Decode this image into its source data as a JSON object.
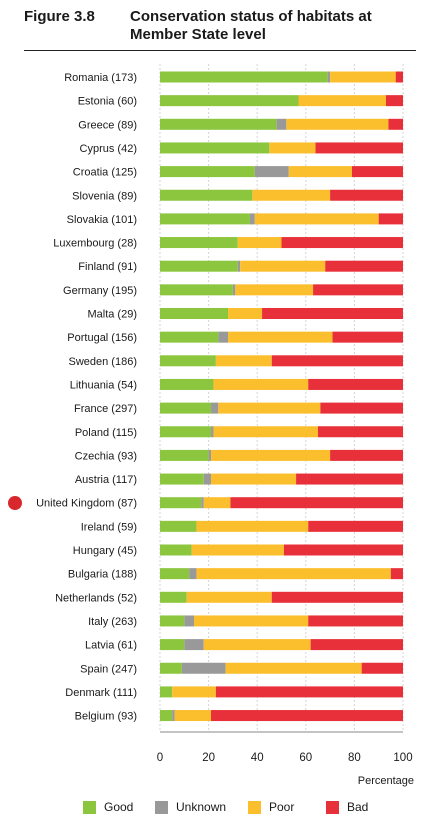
{
  "figure": {
    "number": "Figure 3.8",
    "title": "Conservation status of habitats at Member State level"
  },
  "colors": {
    "good": "#8cc63f",
    "unknown": "#999999",
    "poor": "#fbbf2e",
    "bad": "#e8303a"
  },
  "legend": [
    {
      "key": "good",
      "label": "Good"
    },
    {
      "key": "unknown",
      "label": "Unknown"
    },
    {
      "key": "poor",
      "label": "Poor"
    },
    {
      "key": "bad",
      "label": "Bad"
    }
  ],
  "chart_data": {
    "type": "bar",
    "orientation": "horizontal",
    "stacked": true,
    "xlabel": "Percentage",
    "ylabel": "",
    "xlim": [
      0,
      100
    ],
    "xticks": [
      0,
      20,
      40,
      60,
      80,
      100
    ],
    "grid": true,
    "highlighted_category": "United Kingdom (87)",
    "categories": [
      "Romania (173)",
      "Estonia (60)",
      "Greece (89)",
      "Cyprus (42)",
      "Croatia (125)",
      "Slovenia (89)",
      "Slovakia (101)",
      "Luxembourg (28)",
      "Finland (91)",
      "Germany (195)",
      "Malta (29)",
      "Portugal (156)",
      "Sweden (186)",
      "Lithuania (54)",
      "France (297)",
      "Poland  (115)",
      "Czechia (93)",
      "Austria (117)",
      "United Kingdom (87)",
      "Ireland (59)",
      "Hungary (45)",
      "Bulgaria (188)",
      "Netherlands (52)",
      "Italy (263)",
      "Latvia (61)",
      "Spain (247)",
      "Denmark (111)",
      "Belgium (93)"
    ],
    "series": [
      {
        "name": "Good",
        "values": [
          69,
          57,
          48,
          45,
          39,
          38,
          37,
          32,
          32,
          30,
          28,
          24,
          23,
          22,
          21,
          21,
          20,
          18,
          17,
          15,
          13,
          12,
          11,
          10,
          10,
          9,
          5,
          5
        ]
      },
      {
        "name": "Unknown",
        "values": [
          1,
          0,
          4,
          0,
          14,
          0,
          2,
          0,
          1,
          1,
          0,
          4,
          0,
          0,
          3,
          1,
          1,
          3,
          1,
          0,
          0,
          3,
          0,
          4,
          8,
          18,
          0,
          1
        ]
      },
      {
        "name": "Poor",
        "values": [
          27,
          36,
          42,
          19,
          26,
          32,
          51,
          18,
          35,
          32,
          14,
          43,
          23,
          39,
          42,
          43,
          49,
          35,
          11,
          46,
          38,
          80,
          35,
          47,
          44,
          56,
          18,
          15
        ]
      },
      {
        "name": "Bad",
        "values": [
          3,
          7,
          6,
          36,
          21,
          30,
          10,
          50,
          32,
          37,
          58,
          29,
          54,
          39,
          34,
          35,
          30,
          44,
          71,
          39,
          49,
          5,
          54,
          39,
          38,
          17,
          77,
          79
        ]
      }
    ]
  }
}
